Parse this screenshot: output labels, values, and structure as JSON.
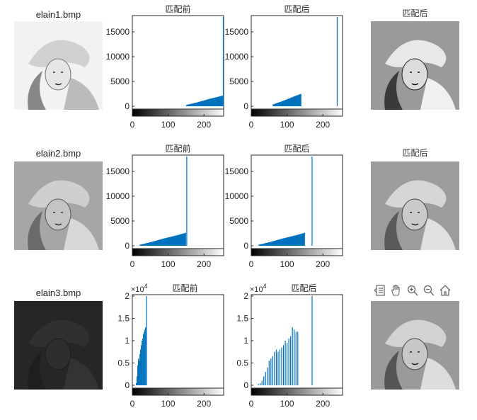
{
  "window": {
    "row_titles": [
      "elain1.bmp",
      "elain2.bmp",
      "elain3.bmp"
    ],
    "before_title": "匹配前",
    "after_title": "匹配后",
    "toolbar": [
      "align-icon",
      "pan-hand-icon",
      "zoom-in-icon",
      "zoom-out-icon",
      "home-icon"
    ]
  },
  "chart_data": [
    {
      "type": "bar",
      "title": "匹配前",
      "xlim": [
        0,
        255
      ],
      "ylim": [
        0,
        18000
      ],
      "yticks": [
        "0",
        "5000",
        "10000",
        "15000"
      ],
      "xticks": [
        "0",
        "100",
        "200"
      ],
      "distribution": {
        "from": 150,
        "to": 255,
        "start": 200,
        "end": 2200
      },
      "spike": {
        "x": 254,
        "y": 18000
      }
    },
    {
      "type": "bar",
      "title": "匹配后",
      "xlim": [
        0,
        255
      ],
      "ylim": [
        0,
        18000
      ],
      "yticks": [
        "0",
        "5000",
        "10000",
        "15000"
      ],
      "xticks": [
        "0",
        "100",
        "200"
      ],
      "distribution": {
        "from": 60,
        "to": 140,
        "start": 300,
        "end": 2500
      },
      "spike": {
        "x": 240,
        "y": 18000
      }
    },
    {
      "type": "bar",
      "title": "匹配前",
      "xlim": [
        0,
        255
      ],
      "ylim": [
        0,
        18000
      ],
      "yticks": [
        "0",
        "5000",
        "10000",
        "15000"
      ],
      "xticks": [
        "0",
        "100",
        "200"
      ],
      "distribution": {
        "from": 20,
        "to": 150,
        "start": 150,
        "end": 2600
      },
      "spike": {
        "x": 152,
        "y": 18000
      }
    },
    {
      "type": "bar",
      "title": "匹配后",
      "xlim": [
        0,
        255
      ],
      "ylim": [
        0,
        18000
      ],
      "yticks": [
        "0",
        "5000",
        "10000",
        "15000"
      ],
      "xticks": [
        "0",
        "100",
        "200"
      ],
      "distribution": {
        "from": 20,
        "to": 150,
        "start": 150,
        "end": 2600
      },
      "spike": {
        "x": 170,
        "y": 18000
      }
    },
    {
      "type": "bar",
      "title": "匹配前",
      "exponent": "×10^4",
      "xlim": [
        0,
        255
      ],
      "ylim": [
        0,
        2
      ],
      "yticks": [
        "0",
        "0.5",
        "1",
        "1.5",
        "2"
      ],
      "xticks": [
        "0",
        "100",
        "200"
      ],
      "bars": [
        [
          11,
          0.05
        ],
        [
          13,
          0.2
        ],
        [
          15,
          0.45
        ],
        [
          17,
          0.6
        ],
        [
          19,
          0.55
        ],
        [
          21,
          0.7
        ],
        [
          23,
          0.8
        ],
        [
          25,
          0.9
        ],
        [
          27,
          1.0
        ],
        [
          29,
          1.05
        ],
        [
          31,
          1.15
        ],
        [
          33,
          1.2
        ],
        [
          35,
          1.25
        ],
        [
          37,
          1.3
        ]
      ],
      "spike": {
        "x": 40,
        "y": 2
      }
    },
    {
      "type": "bar",
      "title": "匹配后",
      "exponent": "×10^4",
      "xlim": [
        0,
        255
      ],
      "ylim": [
        0,
        2
      ],
      "yticks": [
        "0",
        "0.5",
        "1",
        "1.5",
        "2"
      ],
      "xticks": [
        "0",
        "100",
        "200"
      ],
      "bars": [
        [
          20,
          0.03
        ],
        [
          25,
          0.05
        ],
        [
          30,
          0.1
        ],
        [
          35,
          0.2
        ],
        [
          40,
          0.3
        ],
        [
          45,
          0.4
        ],
        [
          50,
          0.55
        ],
        [
          55,
          0.6
        ],
        [
          60,
          0.65
        ],
        [
          65,
          0.75
        ],
        [
          70,
          0.8
        ],
        [
          75,
          0.75
        ],
        [
          80,
          0.8
        ],
        [
          85,
          0.85
        ],
        [
          90,
          0.9
        ],
        [
          95,
          1.0
        ],
        [
          100,
          0.95
        ],
        [
          105,
          1.05
        ],
        [
          110,
          1.1
        ],
        [
          115,
          1.3
        ],
        [
          120,
          1.25
        ],
        [
          125,
          1.2
        ],
        [
          130,
          1.2
        ]
      ],
      "spike": {
        "x": 170,
        "y": 2
      }
    }
  ]
}
